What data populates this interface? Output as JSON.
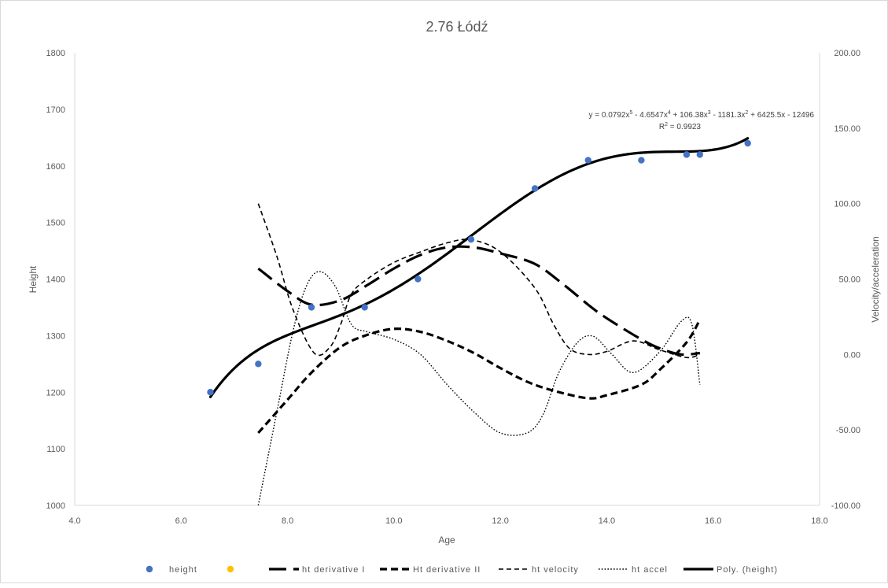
{
  "chart_data": {
    "type": "scatter",
    "title": "2.76 Łódź",
    "xlabel": "Age",
    "ylabel": "Height",
    "y2label": "Velocity/acceleration",
    "xlim": [
      4.0,
      18.0
    ],
    "ylim": [
      1000,
      1800
    ],
    "y2lim": [
      -100,
      200
    ],
    "x_ticks": [
      "4.0",
      "6.0",
      "8.0",
      "10.0",
      "12.0",
      "14.0",
      "16.0",
      "18.0"
    ],
    "y_ticks": [
      "1000",
      "1100",
      "1200",
      "1300",
      "1400",
      "1500",
      "1600",
      "1700",
      "1800"
    ],
    "y2_ticks": [
      "-100.00",
      "-50.00",
      "0.00",
      "50.00",
      "100.00",
      "150.00",
      "200.00"
    ],
    "grid": false,
    "legend_position": "bottom",
    "point_color": "#4472C4",
    "empty_series_color": "#FFC000",
    "line_color": "#000000",
    "series": [
      {
        "name": "height",
        "kind": "points",
        "axis": "left",
        "x": [
          6.55,
          7.45,
          8.45,
          9.45,
          10.45,
          11.45,
          12.65,
          13.65,
          14.65,
          15.5,
          15.75,
          16.65
        ],
        "y": [
          1200,
          1250,
          1350,
          1350,
          1400,
          1470,
          1560,
          1610,
          1610,
          1620,
          1620,
          1640
        ]
      },
      {
        "name": "",
        "kind": "points-empty",
        "axis": "left",
        "x": [],
        "y": []
      },
      {
        "name": "ht derivative I",
        "kind": "line",
        "dash": "long-dash",
        "axis": "right",
        "x": [
          7.45,
          8.0,
          8.45,
          9.0,
          9.5,
          10.0,
          10.5,
          11.0,
          11.5,
          12.0,
          12.65,
          13.2,
          13.65,
          14.0,
          14.65,
          15.0,
          15.4,
          15.75
        ],
        "y": [
          57,
          42,
          33,
          36,
          46,
          57,
          66,
          71,
          71,
          67,
          60,
          46,
          33,
          24,
          10,
          4,
          0,
          1
        ]
      },
      {
        "name": "Ht derivative II",
        "kind": "line",
        "dash": "medium-dash",
        "axis": "right",
        "x": [
          7.45,
          8.0,
          8.45,
          9.0,
          9.5,
          10.0,
          10.5,
          11.0,
          11.5,
          12.0,
          12.5,
          13.0,
          13.65,
          14.0,
          14.65,
          15.0,
          15.5,
          15.75
        ],
        "y": [
          -52,
          -30,
          -12,
          5,
          13,
          17,
          15,
          9,
          1,
          -9,
          -18,
          -24,
          -29,
          -27,
          -20,
          -10,
          8,
          23
        ]
      },
      {
        "name": "ht velocity",
        "kind": "line",
        "dash": "short-dash",
        "axis": "right",
        "x": [
          7.45,
          7.8,
          8.1,
          8.5,
          8.8,
          9.0,
          9.2,
          9.5,
          10.0,
          10.5,
          11.0,
          11.45,
          12.0,
          12.65,
          13.0,
          13.3,
          13.65,
          14.0,
          14.5,
          15.0,
          15.5,
          15.75
        ],
        "y": [
          100,
          65,
          30,
          1,
          5,
          20,
          40,
          50,
          61,
          68,
          74,
          76,
          68,
          44,
          20,
          4,
          0,
          2,
          9,
          3,
          -2,
          0
        ]
      },
      {
        "name": "ht accel",
        "kind": "line",
        "dash": "dotted",
        "axis": "right",
        "x": [
          7.45,
          7.8,
          8.1,
          8.35,
          8.6,
          8.9,
          9.2,
          9.5,
          10.0,
          10.5,
          11.0,
          11.5,
          12.0,
          12.5,
          12.8,
          13.1,
          13.45,
          13.75,
          14.1,
          14.5,
          15.0,
          15.4,
          15.6,
          15.75
        ],
        "y": [
          -100,
          -38,
          15,
          45,
          55,
          45,
          20,
          15,
          10,
          0,
          -20,
          -38,
          -52,
          -52,
          -40,
          -12,
          8,
          12,
          0,
          -12,
          2,
          22,
          20,
          -20
        ]
      },
      {
        "name": "Poly. (height)",
        "kind": "trendline",
        "dash": "solid",
        "axis": "left",
        "polynomial": [
          0.0792,
          -4.6547,
          106.38,
          -1181.3,
          6425.5,
          -12496
        ],
        "x_range": [
          6.55,
          16.65
        ]
      }
    ],
    "trendline_label": {
      "equation_parts": [
        "y = 0.0792x",
        "5",
        " - 4.6547x",
        "4",
        " + 106.38x",
        "3",
        " - 1181.3x",
        "2",
        " + 6425.5x - 12496"
      ],
      "r2_parts": [
        "R",
        "2",
        " = 0.9923"
      ]
    }
  }
}
